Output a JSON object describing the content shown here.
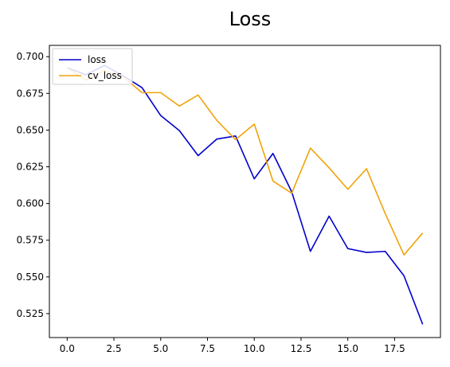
{
  "chart_data": {
    "type": "line",
    "title": "Loss",
    "xlabel": "",
    "ylabel": "",
    "xlim": [
      -0.95,
      19.95
    ],
    "ylim": [
      0.5087,
      0.7077
    ],
    "xticks": [
      "0.0",
      "2.5",
      "5.0",
      "7.5",
      "10.0",
      "12.5",
      "15.0",
      "17.5"
    ],
    "xtick_values": [
      0,
      2.5,
      5,
      7.5,
      10,
      12.5,
      15,
      17.5
    ],
    "yticks": [
      "0.525",
      "0.550",
      "0.575",
      "0.600",
      "0.625",
      "0.650",
      "0.675",
      "0.700"
    ],
    "ytick_values": [
      0.525,
      0.55,
      0.575,
      0.6,
      0.625,
      0.65,
      0.675,
      0.7
    ],
    "grid": false,
    "legend_position": "top-left",
    "x": [
      0,
      1,
      2,
      3,
      4,
      5,
      6,
      7,
      8,
      9,
      10,
      11,
      12,
      13,
      14,
      15,
      16,
      17,
      18,
      19
    ],
    "series": [
      {
        "name": "loss",
        "color": "#0000cc",
        "values": [
          0.6925,
          0.6877,
          0.694,
          0.6869,
          0.6789,
          0.6599,
          0.6496,
          0.6326,
          0.6439,
          0.646,
          0.6168,
          0.6341,
          0.608,
          0.5674,
          0.5914,
          0.5693,
          0.5667,
          0.5674,
          0.5508,
          0.5177
        ]
      },
      {
        "name": "cv_loss",
        "color": "#f0a30a",
        "values": [
          0.6923,
          0.684,
          0.6905,
          0.6862,
          0.6755,
          0.6755,
          0.6664,
          0.6739,
          0.6566,
          0.6435,
          0.6541,
          0.6153,
          0.607,
          0.6377,
          0.6243,
          0.6097,
          0.6237,
          0.5931,
          0.565,
          0.5799
        ]
      }
    ]
  }
}
